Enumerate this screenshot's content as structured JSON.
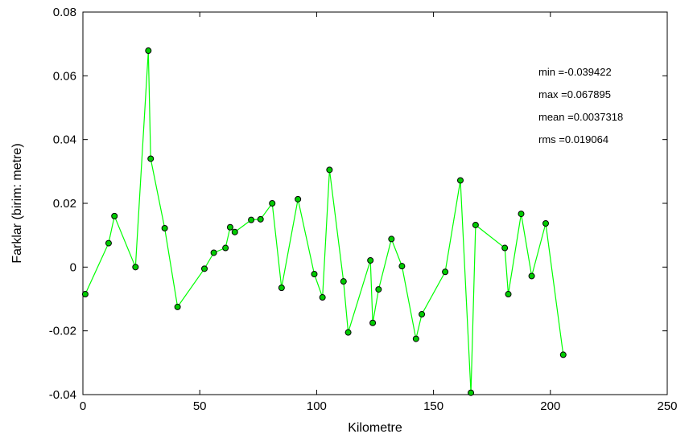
{
  "chart_data": {
    "type": "line",
    "xlabel": "Kilometre",
    "ylabel": "Farklar (birim: metre)",
    "xlim": [
      0,
      250
    ],
    "ylim": [
      -0.04,
      0.08
    ],
    "xticks": [
      0,
      50,
      100,
      150,
      200,
      250
    ],
    "xtick_labels": [
      "0",
      "50",
      "100",
      "150",
      "200",
      "250"
    ],
    "yticks": [
      -0.04,
      -0.02,
      0,
      0.02,
      0.04,
      0.06,
      0.08
    ],
    "ytick_labels": [
      "-0.04",
      "-0.02",
      "0",
      "0.02",
      "0.04",
      "0.06",
      "0.08"
    ],
    "grid": false,
    "line_color": "#00ff00",
    "marker_color": "#00cc00",
    "annotations": [
      "min =-0.039422",
      "max =0.067895",
      "mean =0.0037318",
      "rms =0.019064"
    ],
    "series": [
      {
        "x": [
          1,
          11,
          13.5,
          22.5,
          28,
          29,
          35,
          40.5,
          52,
          56,
          61,
          63,
          65,
          72,
          76,
          81,
          85,
          92,
          99,
          102.5,
          105.5,
          111.5,
          113.5,
          123,
          124,
          126.5,
          132,
          136.5,
          142.5,
          145,
          155,
          161.5,
          166,
          168,
          180.5,
          182,
          187.5,
          192,
          198,
          205.5
        ],
        "y": [
          -0.0085,
          0.0075,
          0.016,
          0.0,
          0.067895,
          0.034,
          0.0122,
          -0.0125,
          -0.0005,
          0.0045,
          0.006,
          0.0125,
          0.011,
          0.0148,
          0.015,
          0.02,
          -0.0065,
          0.0213,
          -0.0022,
          -0.0095,
          0.0305,
          -0.0045,
          -0.0205,
          0.0021,
          -0.0175,
          -0.007,
          0.0088,
          0.0003,
          -0.0225,
          -0.0148,
          -0.0015,
          0.0272,
          -0.039422,
          0.0132,
          0.006,
          -0.0085,
          0.0167,
          -0.0028,
          0.0137,
          -0.0275
        ]
      }
    ]
  }
}
